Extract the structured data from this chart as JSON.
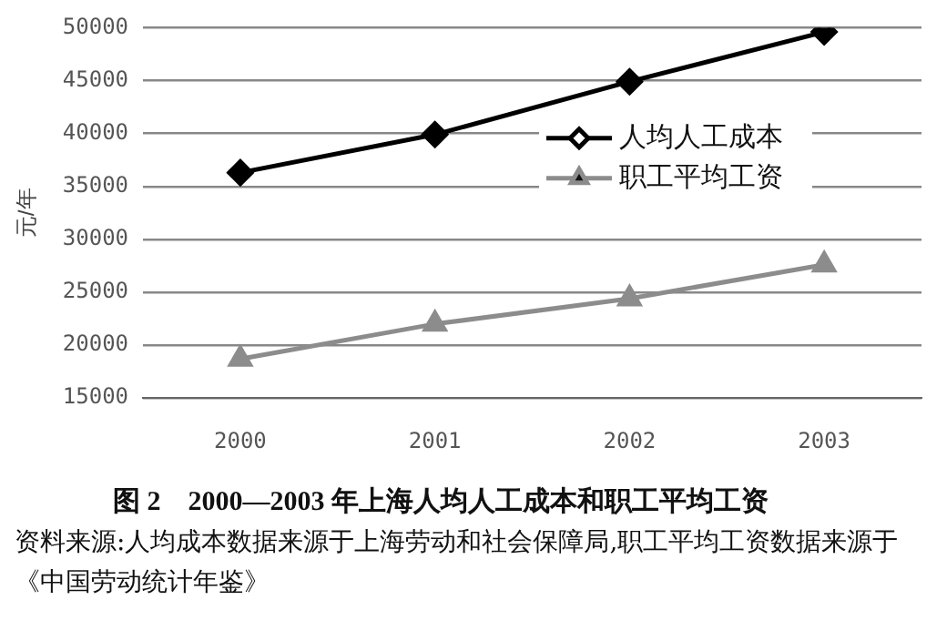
{
  "chart_data": {
    "type": "line",
    "title": "图 2　2000—2003 年上海人均人工成本和职工平均工资",
    "ylabel": "元/年",
    "categories": [
      "2000",
      "2001",
      "2002",
      "2003"
    ],
    "series": [
      {
        "name": "人均人工成本",
        "color": "#000000",
        "marker": "diamond",
        "values": [
          36300,
          39900,
          44900,
          49600
        ]
      },
      {
        "name": "职工平均工资",
        "color": "#8c8c8c",
        "marker": "triangle",
        "values": [
          18700,
          22000,
          24400,
          27600
        ]
      }
    ],
    "ylim": [
      15000,
      50000
    ],
    "yticks": [
      15000,
      20000,
      25000,
      30000,
      35000,
      40000,
      45000,
      50000
    ],
    "grid": "y",
    "legend": "right",
    "line_style": "solid",
    "annotations": [
      "资料来源:人均成本数据来源于上海劳动和社会保障局,职工平均工资数据来源于《中国劳动统计年鉴》"
    ]
  }
}
